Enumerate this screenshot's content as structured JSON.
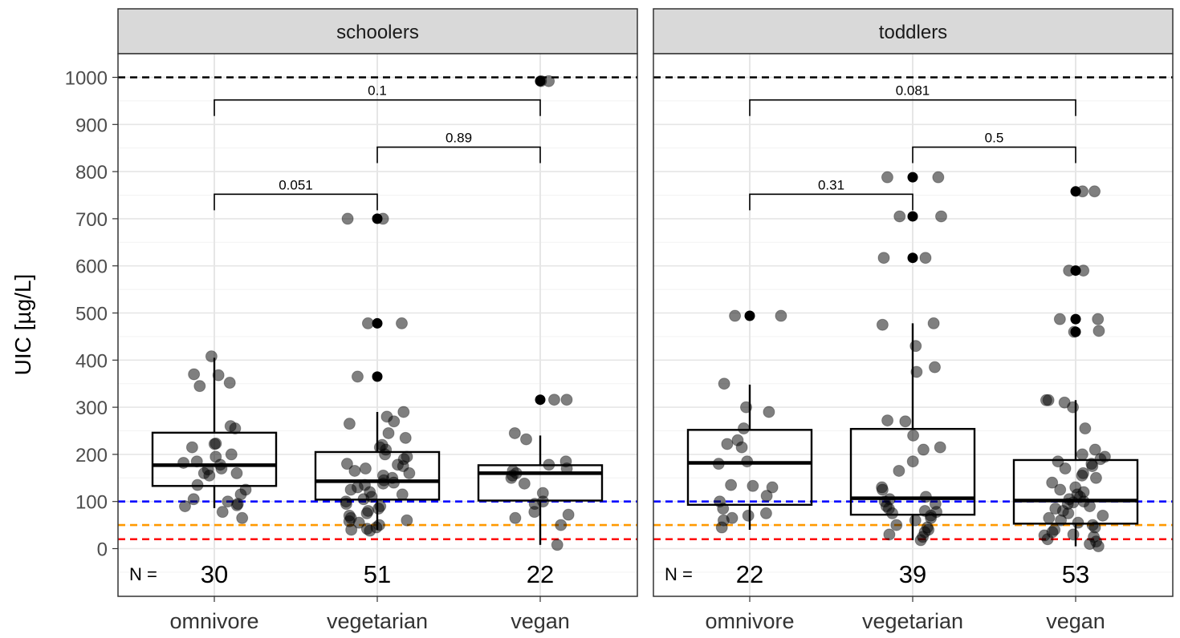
{
  "chart_data": {
    "type": "box",
    "ylabel": "UIC [µg/L]",
    "ylim": [
      -75,
      1050
    ],
    "yticks": [
      0,
      100,
      200,
      300,
      400,
      500,
      600,
      700,
      800,
      900,
      1000
    ],
    "ytick_labels": [
      "0",
      "100",
      "200",
      "300",
      "400",
      "500",
      "600",
      "700",
      "800",
      "900",
      "1000"
    ],
    "categories": [
      "omnivore",
      "vegetarian",
      "vegan"
    ],
    "n_label": "N =",
    "grid": true,
    "reference_lines": [
      {
        "y": 1000,
        "color": "#000000"
      },
      {
        "y": 100,
        "color": "#0000ff"
      },
      {
        "y": 50,
        "color": "#ff9900"
      },
      {
        "y": 20,
        "color": "#ff0000"
      }
    ],
    "panels": [
      {
        "title": "schoolers",
        "n": [
          "30",
          "51",
          "22"
        ],
        "boxes": [
          {
            "category": "omnivore",
            "q1": 133,
            "median": 177,
            "q3": 246,
            "whisker_low": 86,
            "whisker_high": 405
          },
          {
            "category": "vegetarian",
            "q1": 104,
            "median": 143,
            "q3": 205,
            "whisker_low": 40,
            "whisker_high": 290
          },
          {
            "category": "vegan",
            "q1": 102,
            "median": 160,
            "q3": 177,
            "whisker_low": 8,
            "whisker_high": 240
          }
        ],
        "outliers": [
          {
            "category": "vegetarian",
            "values": [
              700,
              478,
              365
            ]
          },
          {
            "category": "vegan",
            "values": [
              992,
              316
            ]
          }
        ],
        "comparisons": [
          {
            "from": "omnivore",
            "to": "vegetarian",
            "label": "0.051",
            "y": 752
          },
          {
            "from": "vegetarian",
            "to": "vegan",
            "label": "0.89",
            "y": 852
          },
          {
            "from": "omnivore",
            "to": "vegan",
            "label": "0.1",
            "y": 952
          }
        ],
        "points": [
          {
            "category": "omnivore",
            "values": [
              370,
              352,
              368,
              408,
              345,
              255,
              260,
              222,
              223,
              195,
              182,
              178,
              170,
              168,
              160,
              160,
              155,
              135,
              125,
              100,
              95,
              92,
              90,
              78,
              65,
              185,
              200,
              215,
              115,
              105
            ]
          },
          {
            "category": "vegetarian",
            "values": [
              700,
              700,
              478,
              478,
              365,
              290,
              280,
              270,
              265,
              245,
              235,
              220,
              215,
              210,
              200,
              195,
              190,
              180,
              178,
              175,
              170,
              165,
              160,
              155,
              150,
              145,
              140,
              138,
              135,
              130,
              125,
              120,
              115,
              110,
              105,
              100,
              95,
              90,
              85,
              80,
              75,
              70,
              65,
              60,
              58,
              55,
              50,
              45,
              42,
              40,
              38
            ]
          },
          {
            "category": "vegan",
            "values": [
              992,
              992,
              316,
              316,
              245,
              232,
              185,
              178,
              170,
              165,
              160,
              155,
              150,
              138,
              118,
              100,
              95,
              78,
              72,
              65,
              50,
              8
            ]
          }
        ]
      },
      {
        "title": "toddlers",
        "n": [
          "22",
          "39",
          "53"
        ],
        "boxes": [
          {
            "category": "omnivore",
            "q1": 93,
            "median": 182,
            "q3": 252,
            "whisker_low": 40,
            "whisker_high": 348
          },
          {
            "category": "vegetarian",
            "q1": 72,
            "median": 107,
            "q3": 254,
            "whisker_low": 18,
            "whisker_high": 478
          },
          {
            "category": "vegan",
            "q1": 53,
            "median": 102,
            "q3": 188,
            "whisker_low": 5,
            "whisker_high": 315
          }
        ],
        "outliers": [
          {
            "category": "omnivore",
            "values": [
              494
            ]
          },
          {
            "category": "vegetarian",
            "values": [
              788,
              705,
              617
            ]
          },
          {
            "category": "vegan",
            "values": [
              758,
              590,
              487,
              460
            ]
          }
        ],
        "comparisons": [
          {
            "from": "omnivore",
            "to": "vegetarian",
            "label": "0.31",
            "y": 752
          },
          {
            "from": "vegetarian",
            "to": "vegan",
            "label": "0.5",
            "y": 852
          },
          {
            "from": "omnivore",
            "to": "vegan",
            "label": "0.081",
            "y": 952
          }
        ],
        "points": [
          {
            "category": "omnivore",
            "values": [
              494,
              494,
              350,
              300,
              290,
              255,
              230,
              222,
              215,
              185,
              180,
              135,
              133,
              130,
              112,
              100,
              85,
              75,
              70,
              65,
              60,
              45
            ]
          },
          {
            "category": "vegetarian",
            "values": [
              788,
              788,
              705,
              705,
              617,
              617,
              478,
              475,
              430,
              385,
              375,
              272,
              270,
              240,
              215,
              210,
              185,
              165,
              130,
              125,
              110,
              105,
              100,
              95,
              90,
              85,
              80,
              78,
              75,
              70,
              65,
              60,
              50,
              45,
              40,
              35,
              30,
              25,
              18
            ]
          },
          {
            "category": "vegan",
            "values": [
              758,
              758,
              590,
              590,
              487,
              487,
              462,
              460,
              315,
              315,
              310,
              300,
              255,
              210,
              200,
              195,
              190,
              185,
              180,
              175,
              170,
              160,
              155,
              150,
              140,
              130,
              125,
              120,
              115,
              110,
              105,
              100,
              98,
              95,
              90,
              85,
              80,
              75,
              70,
              65,
              60,
              55,
              50,
              45,
              40,
              35,
              30,
              28,
              25,
              20,
              15,
              10,
              5
            ]
          }
        ]
      }
    ]
  }
}
